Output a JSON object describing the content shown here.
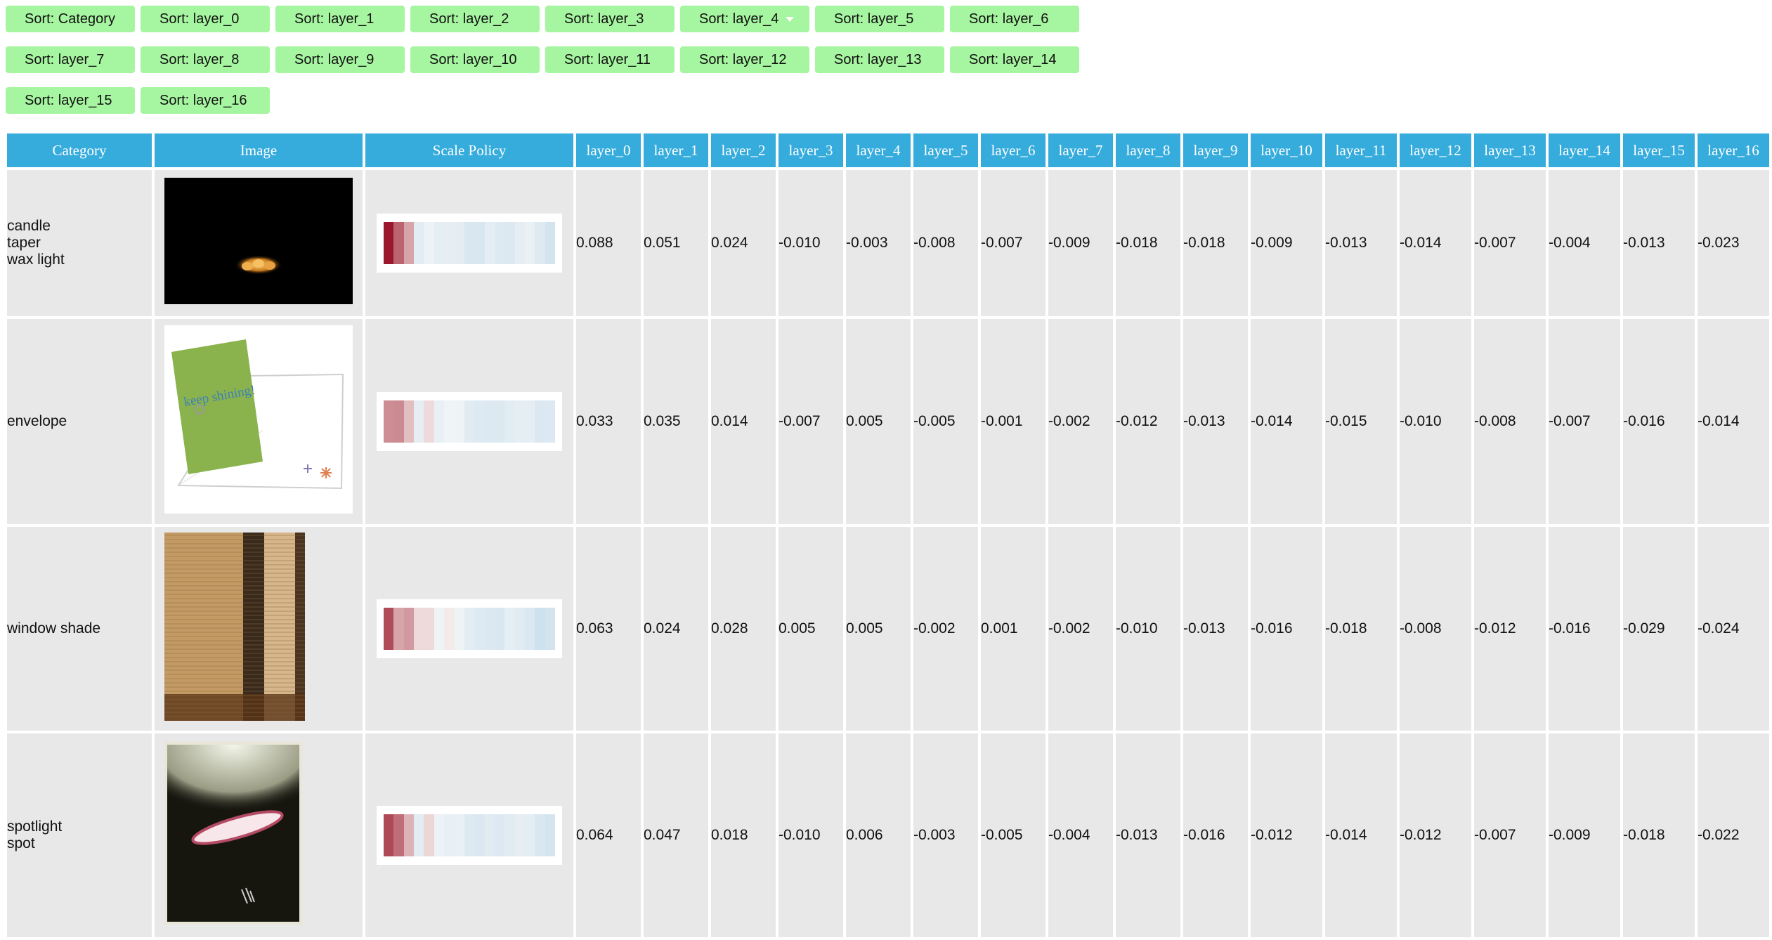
{
  "sort_buttons": [
    {
      "label": "Sort: Category"
    },
    {
      "label": "Sort: layer_0"
    },
    {
      "label": "Sort: layer_1"
    },
    {
      "label": "Sort: layer_2"
    },
    {
      "label": "Sort: layer_3"
    },
    {
      "label": "Sort: layer_4",
      "active": true
    },
    {
      "label": "Sort: layer_5"
    },
    {
      "label": "Sort: layer_6"
    },
    {
      "label": "Sort: layer_7"
    },
    {
      "label": "Sort: layer_8"
    },
    {
      "label": "Sort: layer_9"
    },
    {
      "label": "Sort: layer_10"
    },
    {
      "label": "Sort: layer_11"
    },
    {
      "label": "Sort: layer_12"
    },
    {
      "label": "Sort: layer_13"
    },
    {
      "label": "Sort: layer_14"
    },
    {
      "label": "Sort: layer_15"
    },
    {
      "label": "Sort: layer_16"
    }
  ],
  "table": {
    "headers": [
      "Category",
      "Image",
      "Scale Policy",
      "layer_0",
      "layer_1",
      "layer_2",
      "layer_3",
      "layer_4",
      "layer_5",
      "layer_6",
      "layer_7",
      "layer_8",
      "layer_9",
      "layer_10",
      "layer_11",
      "layer_12",
      "layer_13",
      "layer_14",
      "layer_15",
      "layer_16"
    ],
    "rows": [
      {
        "category_lines": [
          "candle",
          "taper",
          "wax light"
        ],
        "image": "candle-image",
        "values": [
          "0.088",
          "0.051",
          "0.024",
          "-0.010",
          "-0.003",
          "-0.008",
          "-0.007",
          "-0.009",
          "-0.018",
          "-0.018",
          "-0.009",
          "-0.013",
          "-0.014",
          "-0.007",
          "-0.004",
          "-0.013",
          "-0.023"
        ]
      },
      {
        "category_lines": [
          "envelope"
        ],
        "image": "envelope-card-image",
        "image_text": "keep shining!",
        "values": [
          "0.033",
          "0.035",
          "0.014",
          "-0.007",
          "0.005",
          "-0.005",
          "-0.001",
          "-0.002",
          "-0.012",
          "-0.013",
          "-0.014",
          "-0.015",
          "-0.010",
          "-0.008",
          "-0.007",
          "-0.016",
          "-0.014"
        ]
      },
      {
        "category_lines": [
          "window shade"
        ],
        "image": "window-shade-image",
        "values": [
          "0.063",
          "0.024",
          "0.028",
          "0.005",
          "0.005",
          "-0.002",
          "0.001",
          "-0.002",
          "-0.010",
          "-0.013",
          "-0.016",
          "-0.018",
          "-0.008",
          "-0.012",
          "-0.016",
          "-0.029",
          "-0.024"
        ]
      },
      {
        "category_lines": [
          "spotlight",
          "spot"
        ],
        "image": "spotlight-image",
        "values": [
          "0.064",
          "0.047",
          "0.018",
          "-0.010",
          "0.006",
          "-0.003",
          "-0.005",
          "-0.004",
          "-0.013",
          "-0.016",
          "-0.012",
          "-0.014",
          "-0.012",
          "-0.007",
          "-0.009",
          "-0.018",
          "-0.022"
        ]
      }
    ]
  },
  "colors": {
    "button_bg": "#a6f5a0",
    "header_bg": "#36acdd",
    "cell_bg": "#e8e8e8"
  }
}
